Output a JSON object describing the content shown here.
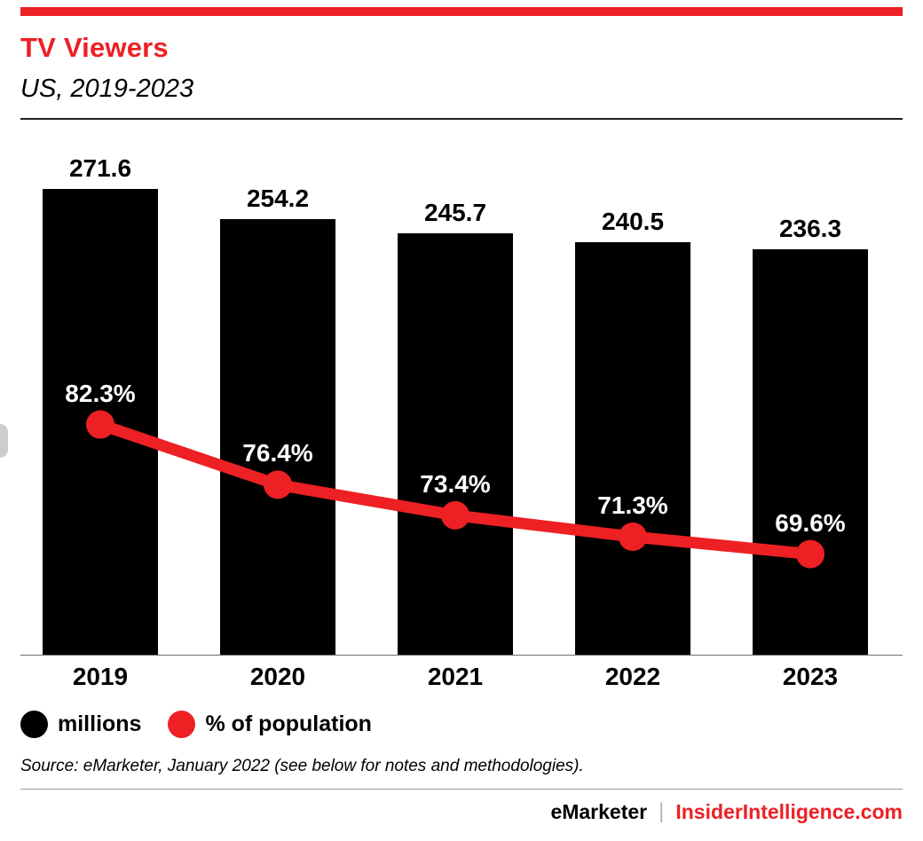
{
  "header": {
    "title": "TV Viewers",
    "subtitle": "US, 2019-2023"
  },
  "chart_data": {
    "type": "bar",
    "title": "TV Viewers",
    "subtitle": "US, 2019-2023",
    "categories": [
      "2019",
      "2020",
      "2021",
      "2022",
      "2023"
    ],
    "series": [
      {
        "name": "millions",
        "type": "bar",
        "color": "#000000",
        "values": [
          271.6,
          254.2,
          245.7,
          240.5,
          236.3
        ],
        "labels": [
          "271.6",
          "254.2",
          "245.7",
          "240.5",
          "236.3"
        ]
      },
      {
        "name": "% of population",
        "type": "line",
        "color": "#ed2024",
        "values": [
          82.3,
          76.4,
          73.4,
          71.3,
          69.6
        ],
        "labels": [
          "82.3%",
          "76.4%",
          "73.4%",
          "71.3%",
          "69.6%"
        ]
      }
    ],
    "legend": [
      {
        "label": "millions",
        "color": "#000000"
      },
      {
        "label": "% of population",
        "color": "#ed2024"
      }
    ],
    "legend_position": "bottom-left",
    "grid": false,
    "xlabel": "",
    "ylabel": "",
    "bar_axis_range": [
      0,
      271.6
    ]
  },
  "source_note": "Source: eMarketer, January 2022 (see below for notes and methodologies).",
  "footer": {
    "brand_left": "eMarketer",
    "separator": "|",
    "brand_right": "InsiderIntelligence.com"
  },
  "colors": {
    "accent_red": "#ed2024",
    "bar_black": "#000000",
    "divider_dark": "#231f20",
    "divider_gray": "#9b9b9b"
  }
}
